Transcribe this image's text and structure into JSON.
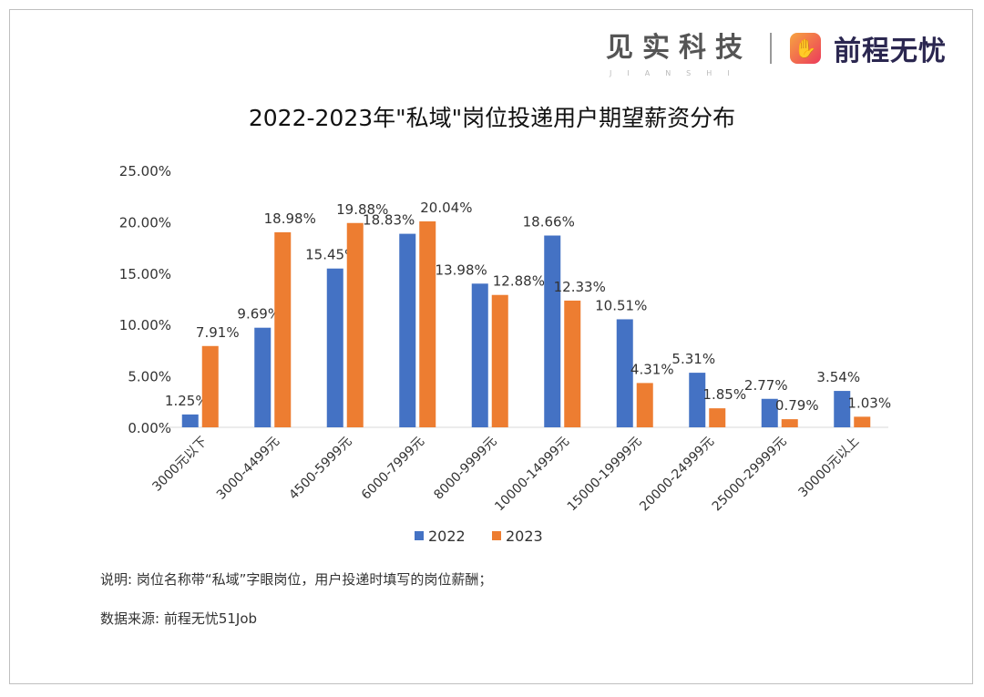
{
  "logo": {
    "brand1": "见实科技",
    "brand1_sub": "JIANSHI",
    "brand2": "前程无忧"
  },
  "chart_data": {
    "type": "bar",
    "title": "2022-2023年\"私域\"岗位投递用户期望薪资分布",
    "categories": [
      "3000元以下",
      "3000-4499元",
      "4500-5999元",
      "6000-7999元",
      "8000-9999元",
      "10000-14999元",
      "15000-19999元",
      "20000-24999元",
      "25000-29999元",
      "30000元以上"
    ],
    "series": [
      {
        "name": "2022",
        "color": "#4472c4",
        "values": [
          1.25,
          9.69,
          15.45,
          18.83,
          13.98,
          18.66,
          10.51,
          5.31,
          2.77,
          3.54
        ],
        "labels": [
          "1.25%",
          "9.69%",
          "15.45%",
          "18.83%",
          "13.98%",
          "18.66%",
          "10.51%",
          "5.31%",
          "2.77%",
          "3.54%"
        ]
      },
      {
        "name": "2023",
        "color": "#ed7d31",
        "values": [
          7.91,
          18.98,
          19.88,
          20.04,
          12.88,
          12.33,
          4.31,
          1.85,
          0.79,
          1.03
        ],
        "labels": [
          "7.91%",
          "18.98%",
          "19.88%",
          "20.04%",
          "12.88%",
          "12.33%",
          "4.31%",
          "1.85%",
          "0.79%",
          "1.03%"
        ]
      }
    ],
    "yticks": [
      "0.00%",
      "5.00%",
      "10.00%",
      "15.00%",
      "20.00%",
      "25.00%"
    ],
    "ylim": [
      0,
      25
    ],
    "grid": false,
    "legend": "bottom"
  },
  "notes": {
    "explanation": "说明: 岗位名称带“私域”字眼岗位，用户投递时填写的岗位薪酬；",
    "source": "数据来源: 前程无忧51Job"
  }
}
